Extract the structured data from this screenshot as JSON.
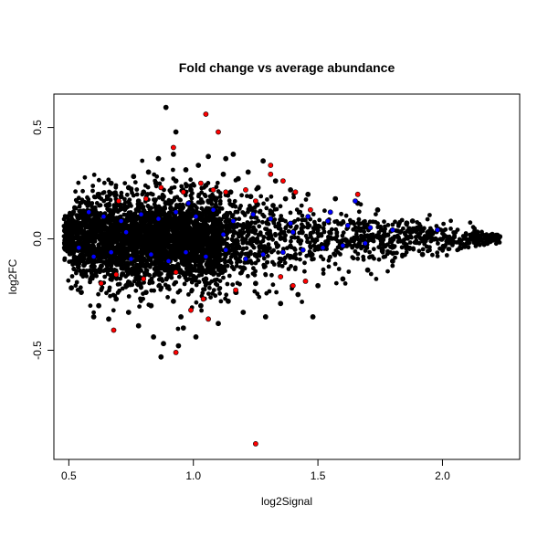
{
  "chart_data": {
    "type": "scatter",
    "title": "Fold change vs average abundance",
    "xlabel": "log2Signal",
    "ylabel": "log2FC",
    "xlim": [
      0.44,
      2.31
    ],
    "ylim": [
      -0.99,
      0.65
    ],
    "x_ticks": [
      0.5,
      1.0,
      1.5,
      2.0
    ],
    "x_tick_labels": [
      "0.5",
      "1.0",
      "1.5",
      "2.0"
    ],
    "y_ticks": [
      -0.5,
      0.0,
      0.5
    ],
    "y_tick_labels": [
      "-0.5",
      "0.0",
      "0.5"
    ],
    "grid": false,
    "legend": "none",
    "colors": {
      "background": "#ffffff",
      "axis": "#000000",
      "black_points": "#000000",
      "blue_points": "#0000ff",
      "red_points": "#ff0000"
    },
    "series": [
      {
        "color": "#000000",
        "points": [
          [
            0.89,
            0.59
          ],
          [
            0.93,
            0.48
          ],
          [
            0.92,
            0.38
          ],
          [
            0.86,
            0.36
          ],
          [
            1.06,
            0.37
          ],
          [
            1.16,
            0.38
          ],
          [
            1.13,
            0.36
          ],
          [
            1.28,
            0.35
          ],
          [
            0.97,
            0.31
          ],
          [
            0.82,
            0.3
          ],
          [
            1.02,
            0.33
          ],
          [
            1.22,
            0.3
          ],
          [
            0.76,
            0.28
          ],
          [
            1.12,
            0.29
          ],
          [
            0.67,
            0.25
          ],
          [
            0.93,
            0.26
          ],
          [
            1.18,
            0.27
          ],
          [
            1.33,
            0.26
          ],
          [
            0.74,
            0.23
          ],
          [
            0.85,
            0.25
          ],
          [
            1.05,
            0.24
          ],
          [
            1.26,
            0.23
          ],
          [
            0.99,
            0.22
          ],
          [
            1.39,
            0.22
          ],
          [
            0.62,
            0.2
          ],
          [
            0.8,
            0.21
          ],
          [
            1.15,
            0.21
          ],
          [
            1.46,
            0.2
          ],
          [
            0.71,
            0.19
          ],
          [
            1.57,
            0.18
          ],
          [
            1.37,
            0.18
          ],
          [
            0.57,
            0.16
          ],
          [
            1.66,
            0.16
          ],
          [
            1.74,
            0.13
          ],
          [
            1.88,
            0.08
          ],
          [
            0.92,
            -0.28
          ],
          [
            0.83,
            -0.3
          ],
          [
            0.74,
            -0.33
          ],
          [
            1.03,
            -0.3
          ],
          [
            1.14,
            -0.28
          ],
          [
            0.66,
            -0.36
          ],
          [
            0.78,
            -0.39
          ],
          [
            0.96,
            -0.4
          ],
          [
            1.2,
            -0.33
          ],
          [
            1.29,
            -0.35
          ],
          [
            0.88,
            -0.47
          ],
          [
            0.94,
            -0.48
          ],
          [
            1.01,
            -0.44
          ],
          [
            0.84,
            -0.44
          ],
          [
            1.35,
            -0.29
          ],
          [
            1.42,
            -0.25
          ],
          [
            0.62,
            -0.3
          ],
          [
            0.69,
            -0.27
          ],
          [
            0.55,
            -0.24
          ],
          [
            1.5,
            -0.21
          ],
          [
            1.6,
            -0.18
          ],
          [
            1.7,
            -0.14
          ],
          [
            1.8,
            -0.1
          ],
          [
            1.92,
            -0.07
          ],
          [
            0.87,
            -0.53
          ],
          [
            1.48,
            -0.35
          ],
          [
            1.1,
            -0.38
          ],
          [
            0.6,
            -0.35
          ],
          [
            0.51,
            -0.22
          ],
          [
            1.25,
            -0.2
          ],
          [
            0.73,
            -0.21
          ],
          [
            1.05,
            -0.18
          ],
          [
            0.81,
            -0.24
          ],
          [
            1.17,
            -0.24
          ],
          [
            0.95,
            -0.35
          ],
          [
            1.06,
            0.17
          ],
          [
            0.88,
            0.19
          ],
          [
            1.23,
            0.19
          ],
          [
            1.32,
            0.15
          ],
          [
            0.78,
            0.17
          ],
          [
            2.14,
            0.03
          ],
          [
            2.2,
            0.02
          ],
          [
            2.23,
            0.01
          ],
          [
            2.18,
            -0.02
          ],
          [
            2.09,
            -0.03
          ]
        ]
      },
      {
        "color": "#0000ff",
        "points": [
          [
            0.58,
            0.12
          ],
          [
            0.64,
            0.1
          ],
          [
            0.71,
            0.08
          ],
          [
            0.79,
            0.11
          ],
          [
            0.86,
            0.09
          ],
          [
            0.93,
            0.12
          ],
          [
            1.01,
            0.1
          ],
          [
            1.08,
            0.13
          ],
          [
            1.16,
            0.08
          ],
          [
            1.24,
            0.11
          ],
          [
            1.31,
            0.09
          ],
          [
            1.39,
            0.07
          ],
          [
            1.46,
            0.1
          ],
          [
            1.54,
            0.08
          ],
          [
            1.62,
            0.06
          ],
          [
            1.71,
            0.05
          ],
          [
            1.8,
            0.04
          ],
          [
            1.65,
            0.17
          ],
          [
            1.55,
            0.12
          ],
          [
            0.98,
            0.16
          ],
          [
            0.6,
            -0.08
          ],
          [
            0.67,
            -0.06
          ],
          [
            0.75,
            -0.09
          ],
          [
            0.83,
            -0.07
          ],
          [
            0.9,
            -0.1
          ],
          [
            0.97,
            -0.06
          ],
          [
            1.05,
            -0.08
          ],
          [
            1.13,
            -0.05
          ],
          [
            1.21,
            -0.09
          ],
          [
            1.28,
            -0.07
          ],
          [
            1.36,
            -0.06
          ],
          [
            1.44,
            -0.05
          ],
          [
            1.52,
            -0.04
          ],
          [
            1.6,
            -0.03
          ],
          [
            1.69,
            -0.02
          ],
          [
            0.54,
            -0.04
          ],
          [
            0.73,
            0.03
          ],
          [
            1.12,
            0.02
          ],
          [
            1.4,
            0.03
          ],
          [
            1.98,
            0.04
          ]
        ]
      },
      {
        "color": "#ff0000",
        "points": [
          [
            1.05,
            0.56
          ],
          [
            1.1,
            0.48
          ],
          [
            0.92,
            0.41
          ],
          [
            1.31,
            0.33
          ],
          [
            1.31,
            0.29
          ],
          [
            1.36,
            0.26
          ],
          [
            1.41,
            0.21
          ],
          [
            1.66,
            0.2
          ],
          [
            1.08,
            0.22
          ],
          [
            1.13,
            0.21
          ],
          [
            0.81,
            0.18
          ],
          [
            0.7,
            0.17
          ],
          [
            1.25,
            0.17
          ],
          [
            0.96,
            0.21
          ],
          [
            1.03,
            0.25
          ],
          [
            1.21,
            0.22
          ],
          [
            0.87,
            0.23
          ],
          [
            1.47,
            0.13
          ],
          [
            0.93,
            -0.15
          ],
          [
            0.8,
            -0.18
          ],
          [
            0.69,
            -0.16
          ],
          [
            1.35,
            -0.17
          ],
          [
            1.4,
            -0.21
          ],
          [
            1.45,
            -0.19
          ],
          [
            1.04,
            -0.27
          ],
          [
            0.99,
            -0.32
          ],
          [
            1.06,
            -0.36
          ],
          [
            0.68,
            -0.41
          ],
          [
            0.93,
            -0.51
          ],
          [
            1.25,
            -0.92
          ],
          [
            0.63,
            -0.2
          ],
          [
            1.17,
            -0.23
          ]
        ]
      }
    ],
    "note": "Several thousand black points form a dense band around 0; blue and red points are overlaid."
  }
}
